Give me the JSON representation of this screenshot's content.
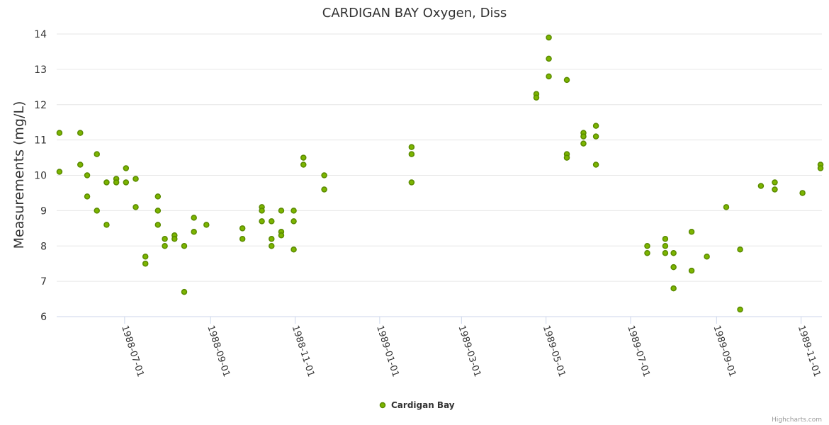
{
  "chart_data": {
    "type": "scatter",
    "title": "CARDIGAN BAY Oxygen, Diss",
    "ylabel": "Measurements (mg/L)",
    "xlabel": "",
    "ylim": [
      6,
      14
    ],
    "yticks": [
      6,
      7,
      8,
      9,
      10,
      11,
      12,
      13,
      14
    ],
    "xlim": [
      "1988-05-13",
      "1989-11-16"
    ],
    "xticks": [
      "1988-07-01",
      "1988-09-01",
      "1988-11-01",
      "1989-01-01",
      "1989-03-01",
      "1989-05-01",
      "1989-07-01",
      "1989-09-01",
      "1989-11-01"
    ],
    "grid": true,
    "legend_position": "bottom-center",
    "series": [
      {
        "name": "Cardigan Bay",
        "color": "#7cb500",
        "points": [
          [
            "1988-05-15",
            11.2
          ],
          [
            "1988-05-15",
            10.1
          ],
          [
            "1988-05-30",
            11.2
          ],
          [
            "1988-05-30",
            10.3
          ],
          [
            "1988-06-04",
            10.0
          ],
          [
            "1988-06-04",
            9.4
          ],
          [
            "1988-06-11",
            10.6
          ],
          [
            "1988-06-11",
            9.0
          ],
          [
            "1988-06-18",
            9.8
          ],
          [
            "1988-06-18",
            8.6
          ],
          [
            "1988-06-25",
            9.9
          ],
          [
            "1988-06-25",
            9.8
          ],
          [
            "1988-07-02",
            10.2
          ],
          [
            "1988-07-02",
            9.8
          ],
          [
            "1988-07-09",
            9.9
          ],
          [
            "1988-07-09",
            9.1
          ],
          [
            "1988-07-16",
            7.7
          ],
          [
            "1988-07-16",
            7.5
          ],
          [
            "1988-07-25",
            9.4
          ],
          [
            "1988-07-25",
            9.0
          ],
          [
            "1988-07-25",
            8.6
          ],
          [
            "1988-07-30",
            8.2
          ],
          [
            "1988-07-30",
            8.0
          ],
          [
            "1988-08-06",
            8.3
          ],
          [
            "1988-08-06",
            8.2
          ],
          [
            "1988-08-13",
            8.0
          ],
          [
            "1988-08-13",
            6.7
          ],
          [
            "1988-08-20",
            8.8
          ],
          [
            "1988-08-20",
            8.4
          ],
          [
            "1988-08-29",
            8.6
          ],
          [
            "1988-09-24",
            8.5
          ],
          [
            "1988-09-24",
            8.2
          ],
          [
            "1988-10-08",
            9.1
          ],
          [
            "1988-10-08",
            9.0
          ],
          [
            "1988-10-08",
            8.7
          ],
          [
            "1988-10-15",
            8.7
          ],
          [
            "1988-10-15",
            8.2
          ],
          [
            "1988-10-15",
            8.0
          ],
          [
            "1988-10-22",
            9.0
          ],
          [
            "1988-10-22",
            8.4
          ],
          [
            "1988-10-22",
            8.3
          ],
          [
            "1988-10-31",
            9.0
          ],
          [
            "1988-10-31",
            8.7
          ],
          [
            "1988-10-31",
            7.9
          ],
          [
            "1988-11-07",
            10.5
          ],
          [
            "1988-11-07",
            10.3
          ],
          [
            "1988-11-22",
            10.0
          ],
          [
            "1988-11-22",
            9.6
          ],
          [
            "1989-01-24",
            10.8
          ],
          [
            "1989-01-24",
            10.6
          ],
          [
            "1989-01-24",
            9.8
          ],
          [
            "1989-04-24",
            12.3
          ],
          [
            "1989-04-24",
            12.2
          ],
          [
            "1989-05-03",
            13.9
          ],
          [
            "1989-05-03",
            13.3
          ],
          [
            "1989-05-03",
            12.8
          ],
          [
            "1989-05-16",
            12.7
          ],
          [
            "1989-05-16",
            10.6
          ],
          [
            "1989-05-16",
            10.5
          ],
          [
            "1989-05-28",
            11.2
          ],
          [
            "1989-05-28",
            11.1
          ],
          [
            "1989-05-28",
            10.9
          ],
          [
            "1989-06-06",
            11.4
          ],
          [
            "1989-06-06",
            11.1
          ],
          [
            "1989-06-06",
            10.3
          ],
          [
            "1989-07-13",
            8.0
          ],
          [
            "1989-07-13",
            7.8
          ],
          [
            "1989-07-26",
            8.2
          ],
          [
            "1989-07-26",
            8.0
          ],
          [
            "1989-07-26",
            7.8
          ],
          [
            "1989-08-01",
            7.8
          ],
          [
            "1989-08-01",
            7.4
          ],
          [
            "1989-08-01",
            6.8
          ],
          [
            "1989-08-14",
            8.4
          ],
          [
            "1989-08-14",
            7.3
          ],
          [
            "1989-08-25",
            7.7
          ],
          [
            "1989-09-08",
            9.1
          ],
          [
            "1989-09-18",
            7.9
          ],
          [
            "1989-09-18",
            6.2
          ],
          [
            "1989-10-03",
            9.7
          ],
          [
            "1989-10-13",
            9.8
          ],
          [
            "1989-10-13",
            9.6
          ],
          [
            "1989-11-02",
            9.5
          ],
          [
            "1989-11-15",
            10.3
          ],
          [
            "1989-11-15",
            10.2
          ]
        ]
      }
    ]
  },
  "credits": "Highcharts.com"
}
